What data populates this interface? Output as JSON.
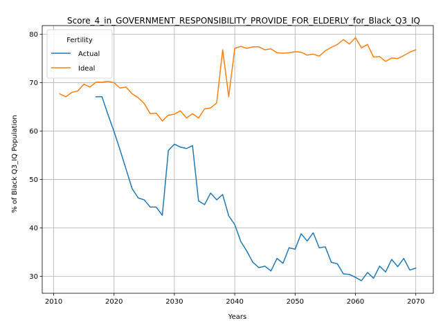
{
  "chart_data": {
    "type": "line",
    "title": "Score_4_in_GOVERNMENT_RESPONSIBILITY_PROVIDE_FOR_ELDERLY_for_Black_Q3_IQ",
    "xlabel": "Years",
    "ylabel": "% of Black Q3_IQ Population",
    "xlim": [
      2008.1,
      2072.9
    ],
    "ylim": [
      26.5,
      81.8
    ],
    "xticks": [
      2010,
      2020,
      2030,
      2040,
      2050,
      2060,
      2070
    ],
    "yticks": [
      30,
      40,
      50,
      60,
      70,
      80
    ],
    "grid": true,
    "legend": {
      "title": "Fertility",
      "placement": "top-left"
    },
    "series": [
      {
        "name": "Actual",
        "color": "#1f77b4",
        "x": [
          2017,
          2018,
          2019,
          2020,
          2021,
          2022,
          2023,
          2024,
          2025,
          2026,
          2027,
          2028,
          2029,
          2030,
          2031,
          2032,
          2033,
          2034,
          2035,
          2036,
          2037,
          2038,
          2039,
          2040,
          2041,
          2042,
          2043,
          2044,
          2045,
          2046,
          2047,
          2048,
          2049,
          2050,
          2051,
          2052,
          2053,
          2054,
          2055,
          2056,
          2057,
          2058,
          2059,
          2060,
          2061,
          2062,
          2063,
          2064,
          2065,
          2066,
          2067,
          2068,
          2069,
          2070
        ],
        "y": [
          67.1,
          67.1,
          63.4,
          59.9,
          56.1,
          52.1,
          48.1,
          46.2,
          45.8,
          44.3,
          44.3,
          42.6,
          56.0,
          57.3,
          56.7,
          56.4,
          57.0,
          45.6,
          44.8,
          47.2,
          45.8,
          46.9,
          42.5,
          40.7,
          37.2,
          35.2,
          32.9,
          31.8,
          32.1,
          31.1,
          33.7,
          32.7,
          35.9,
          35.6,
          38.8,
          37.3,
          39.0,
          35.9,
          36.1,
          32.9,
          32.6,
          30.5,
          30.4,
          29.8,
          29.1,
          30.8,
          29.6,
          32.1,
          30.9,
          33.5,
          32.0,
          33.7,
          31.3,
          31.7
        ]
      },
      {
        "name": "Ideal",
        "color": "#ff7f0e",
        "x": [
          2011,
          2012,
          2013,
          2014,
          2015,
          2016,
          2017,
          2018,
          2019,
          2020,
          2021,
          2022,
          2023,
          2024,
          2025,
          2026,
          2027,
          2028,
          2029,
          2030,
          2031,
          2032,
          2033,
          2034,
          2035,
          2036,
          2037,
          2038,
          2039,
          2040,
          2041,
          2042,
          2043,
          2044,
          2045,
          2046,
          2047,
          2048,
          2049,
          2050,
          2051,
          2052,
          2053,
          2054,
          2055,
          2056,
          2057,
          2058,
          2059,
          2060,
          2061,
          2062,
          2063,
          2064,
          2065,
          2066,
          2067,
          2068,
          2069,
          2070
        ],
        "y": [
          67.7,
          67.1,
          68.0,
          68.3,
          69.7,
          69.1,
          70.1,
          70.1,
          70.3,
          70.0,
          68.9,
          69.1,
          67.7,
          66.9,
          65.7,
          63.6,
          63.7,
          62.1,
          63.3,
          63.5,
          64.2,
          62.7,
          63.6,
          62.7,
          64.6,
          64.8,
          65.8,
          76.8,
          67.1,
          77.1,
          77.5,
          77.1,
          77.4,
          77.4,
          76.8,
          77.0,
          76.2,
          76.1,
          76.2,
          76.4,
          76.3,
          75.7,
          75.9,
          75.5,
          76.6,
          77.3,
          77.9,
          78.9,
          78.0,
          79.3,
          77.2,
          77.9,
          75.3,
          75.4,
          74.4,
          75.1,
          75.0,
          75.6,
          76.3,
          76.8
        ]
      }
    ]
  }
}
